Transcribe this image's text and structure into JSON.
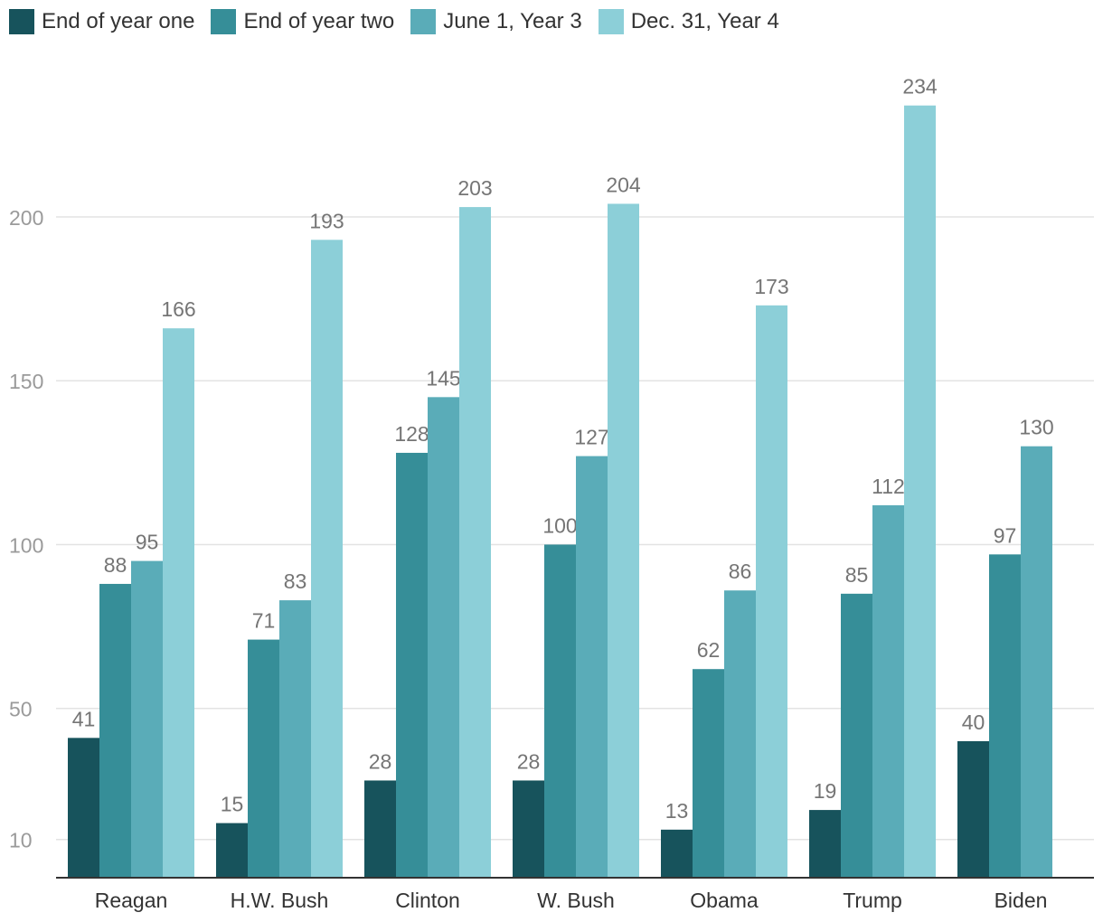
{
  "chart_data": {
    "type": "bar",
    "categories": [
      "Reagan",
      "H.W. Bush",
      "Clinton",
      "W. Bush",
      "Obama",
      "Trump",
      "Biden"
    ],
    "series": [
      {
        "name": "End of year one",
        "color": "#17535c",
        "values": [
          41,
          15,
          28,
          28,
          13,
          19,
          40
        ]
      },
      {
        "name": "End of year two",
        "color": "#368e98",
        "values": [
          88,
          71,
          128,
          100,
          62,
          85,
          97
        ]
      },
      {
        "name": "June 1, Year 3",
        "color": "#5aacb8",
        "values": [
          95,
          83,
          145,
          127,
          86,
          112,
          130
        ]
      },
      {
        "name": "Dec. 31, Year 4",
        "color": "#8ccfd8",
        "values": [
          166,
          193,
          203,
          204,
          173,
          234,
          null
        ]
      }
    ],
    "y_ticks": [
      10,
      50,
      100,
      150,
      200
    ],
    "ylim": [
      0,
      240
    ],
    "grid": true,
    "legend_position": "top-left",
    "title": "",
    "xlabel": "",
    "ylabel": ""
  }
}
